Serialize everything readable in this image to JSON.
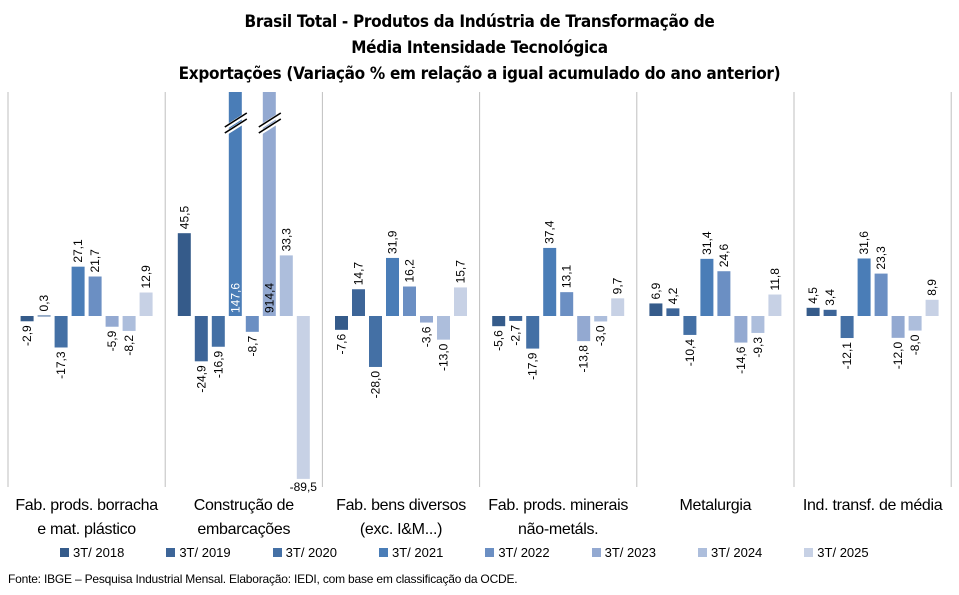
{
  "chart_data": {
    "type": "bar",
    "title": "Brasil Total - Produtos da Indústria de Transformação de Média Intensidade Tecnológica",
    "title_lines": [
      "Brasil Total - Produtos da Indústria de Transformação  de",
      "Média Intensidade Tecnológica",
      "Exportações (Variação % em relação a igual acumulado do ano anterior)"
    ],
    "subtitle": "Exportações (Variação % em relação a igual acumulado do ano anterior)",
    "xlabel": "",
    "ylabel": "",
    "ylim": [
      -89.5,
      125
    ],
    "grid": false,
    "legend_position": "bottom",
    "categories": [
      "Fab. prods. borracha e mat. plástico",
      "Construção de embarcações",
      "Fab. bens diversos (exc. I&M...)",
      "Fab. prods. minerais não-metáls.",
      "Metalurgia",
      "Ind. transf. de média"
    ],
    "category_lines": [
      [
        "Fab. prods. borracha",
        "e mat. plástico"
      ],
      [
        "Construção de",
        "embarcações"
      ],
      [
        "Fab. bens diversos",
        "(exc. I&M...)"
      ],
      [
        "Fab. prods. minerais",
        "não-metáls."
      ],
      [
        "Metalurgia",
        ""
      ],
      [
        "Ind. transf. de média",
        ""
      ]
    ],
    "series": [
      {
        "name": "3T/ 2018",
        "color": "#355B8A",
        "values": [
          -2.9,
          45.5,
          -7.6,
          -5.6,
          6.9,
          4.5
        ]
      },
      {
        "name": "3T/ 2019",
        "color": "#3D6598",
        "values": [
          0.3,
          -24.9,
          14.7,
          -2.7,
          4.2,
          3.4
        ]
      },
      {
        "name": "3T/ 2020",
        "color": "#4470A5",
        "values": [
          -17.3,
          -16.9,
          -28.0,
          -17.9,
          -10.4,
          -12.1
        ]
      },
      {
        "name": "3T/ 2021",
        "color": "#4A7DB7",
        "values": [
          27.1,
          147.6,
          31.9,
          37.4,
          31.4,
          31.6
        ]
      },
      {
        "name": "3T/ 2022",
        "color": "#6B8FC3",
        "values": [
          21.7,
          -8.7,
          16.2,
          13.1,
          24.6,
          23.3
        ]
      },
      {
        "name": "3T/ 2023",
        "color": "#93A9D1",
        "values": [
          -5.9,
          914.4,
          -3.6,
          -13.8,
          -14.6,
          -12.0
        ]
      },
      {
        "name": "3T/ 2024",
        "color": "#ADBEDC",
        "values": [
          -8.2,
          33.3,
          -13.0,
          -3.0,
          -9.3,
          -8.0
        ]
      },
      {
        "name": "3T/ 2025",
        "color": "#C7D1E5",
        "values": [
          12.9,
          -89.5,
          15.7,
          9.7,
          11.8,
          8.9
        ]
      }
    ],
    "data_labels": [
      [
        "-2,9",
        "45,5",
        "-7,6",
        "-5,6",
        "6,9",
        "4,5"
      ],
      [
        "0,3",
        "-24,9",
        "14,7",
        "-2,7",
        "4,2",
        "3,4"
      ],
      [
        "-17,3",
        "-16,9",
        "-28,0",
        "-17,9",
        "-10,4",
        "-12,1"
      ],
      [
        "27,1",
        "147,6",
        "31,9",
        "37,4",
        "31,4",
        "31,6"
      ],
      [
        "21,7",
        "-8,7",
        "16,2",
        "13,1",
        "24,6",
        "23,3"
      ],
      [
        "-5,9",
        "914,4",
        "-3,6",
        "-13,8",
        "-14,6",
        "-12,0"
      ],
      [
        "-8,2",
        "33,3",
        "-13,0",
        "-3,0",
        "-9,3",
        "-8,0"
      ],
      [
        "12,9",
        "-89,5",
        "15,7",
        "9,7",
        "11,8",
        "8,9"
      ]
    ],
    "annotations": [
      "axis break marks (//) on 147,6 and 914,4 bars"
    ]
  },
  "source": "Fonte: IBGE – Pesquisa Industrial Mensal. Elaboração: IEDI, com base em classificação da OCDE."
}
